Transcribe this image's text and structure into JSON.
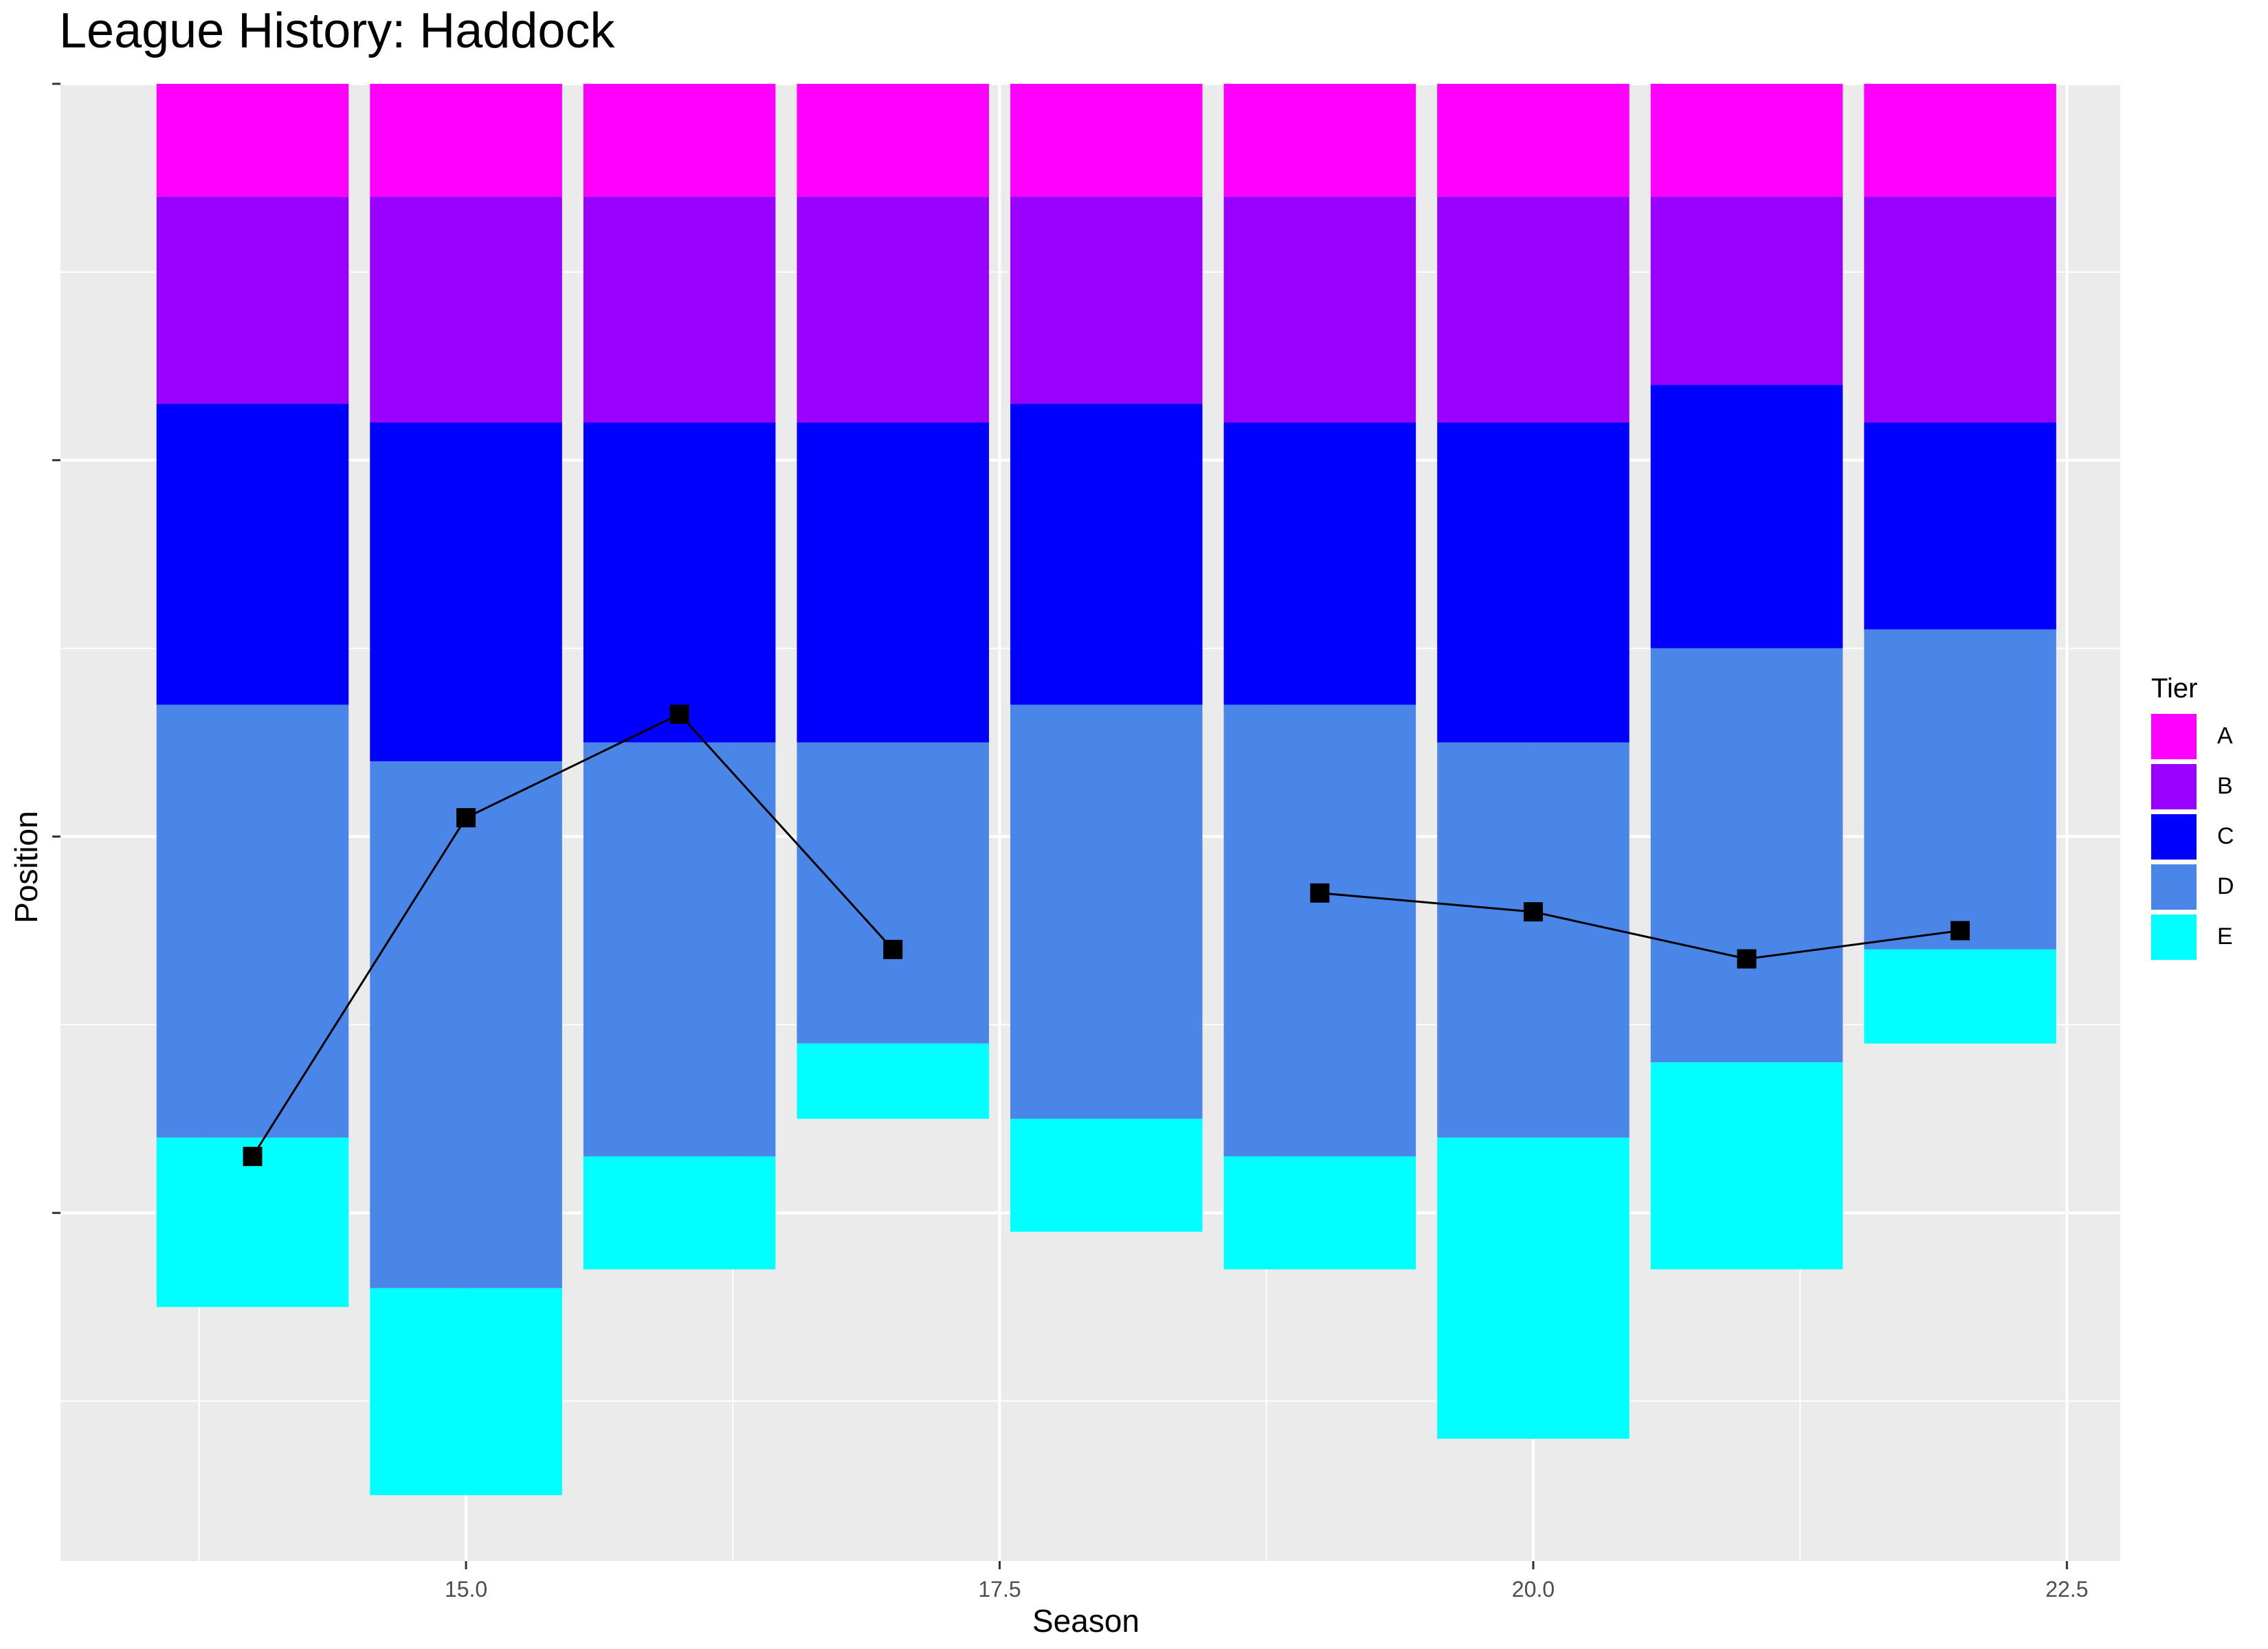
{
  "chart_data": {
    "type": "bar",
    "title": "League History: Haddock",
    "xlabel": "Season",
    "ylabel": "Position",
    "xlim": [
      13.1,
      22.75
    ],
    "ylim": [
      -78.5,
      0
    ],
    "x_ticks": [
      15.0,
      17.5,
      20.0,
      22.5
    ],
    "x_tick_labels": [
      "15.0",
      "17.5",
      "20.0",
      "22.5"
    ],
    "y_ticks": [
      -60,
      -40,
      -20,
      0
    ],
    "grid": true,
    "legend": {
      "title": "Tier",
      "position": "right"
    },
    "tiers": [
      {
        "name": "A",
        "color": "#FF00FF"
      },
      {
        "name": "B",
        "color": "#9900FF"
      },
      {
        "name": "C",
        "color": "#0000FF"
      },
      {
        "name": "D",
        "color": "#4A86E8"
      },
      {
        "name": "E",
        "color": "#00FFFF"
      }
    ],
    "stacks": [
      {
        "season": 14,
        "tiers": [
          6,
          11,
          16,
          23,
          9
        ]
      },
      {
        "season": 15,
        "tiers": [
          6,
          12,
          18,
          28,
          11
        ]
      },
      {
        "season": 16,
        "tiers": [
          6,
          12,
          17,
          22,
          6
        ]
      },
      {
        "season": 17,
        "tiers": [
          6,
          12,
          17,
          16,
          4
        ]
      },
      {
        "season": 18,
        "tiers": [
          6,
          11,
          16,
          22,
          6
        ]
      },
      {
        "season": 19,
        "tiers": [
          6,
          12,
          15,
          24,
          6
        ]
      },
      {
        "season": 20,
        "tiers": [
          6,
          12,
          17,
          21,
          16
        ]
      },
      {
        "season": 21,
        "tiers": [
          6,
          10,
          14,
          22,
          11
        ]
      },
      {
        "season": 22,
        "tiers": [
          6,
          12,
          11,
          17,
          5
        ]
      }
    ],
    "series": [
      {
        "x": [
          14,
          15,
          16,
          17,
          null,
          19,
          20,
          21,
          22
        ],
        "y": [
          -57,
          -39,
          -33.5,
          -46,
          null,
          -43,
          -44,
          -46.5,
          -45
        ]
      }
    ]
  }
}
